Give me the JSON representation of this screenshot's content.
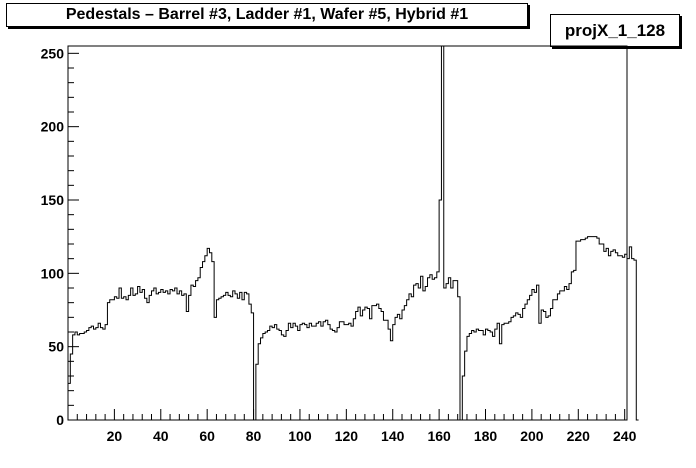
{
  "title": "Pedestals – Barrel #3, Ladder #1, Wafer #5, Hybrid #1",
  "stats_name": "projX_1_128",
  "chart_data": {
    "type": "step-histogram",
    "title": "Pedestals – Barrel #3, Ladder #1, Wafer #5, Hybrid #1",
    "xlabel": "",
    "ylabel": "",
    "xlim": [
      0,
      241
    ],
    "ylim": [
      0,
      255
    ],
    "xticks": [
      20,
      40,
      60,
      80,
      100,
      120,
      140,
      160,
      180,
      200,
      220,
      240
    ],
    "yticks": [
      0,
      50,
      100,
      150,
      200,
      250
    ],
    "grid": false,
    "legend": "none",
    "x_start": 0,
    "bin_width": 1,
    "values": [
      25,
      45,
      58,
      60,
      58,
      59,
      59,
      60,
      61,
      63,
      64,
      62,
      63,
      66,
      63,
      62,
      65,
      80,
      82,
      82,
      84,
      83,
      90,
      83,
      84,
      82,
      85,
      90,
      85,
      86,
      91,
      87,
      89,
      83,
      80,
      85,
      88,
      90,
      86,
      87,
      89,
      87,
      88,
      86,
      89,
      88,
      90,
      86,
      88,
      85,
      86,
      74,
      85,
      92,
      91,
      95,
      97,
      104,
      108,
      112,
      117,
      114,
      108,
      70,
      82,
      83,
      84,
      85,
      87,
      85,
      84,
      88,
      86,
      83,
      87,
      82,
      87,
      86,
      79,
      73,
      0,
      38,
      52,
      56,
      59,
      60,
      61,
      64,
      63,
      65,
      62,
      61,
      58,
      57,
      61,
      66,
      63,
      66,
      64,
      61,
      65,
      66,
      65,
      63,
      66,
      64,
      64,
      66,
      67,
      64,
      67,
      68,
      65,
      62,
      61,
      60,
      63,
      67,
      67,
      65,
      65,
      66,
      64,
      69,
      74,
      77,
      71,
      75,
      77,
      76,
      69,
      78,
      78,
      79,
      76,
      74,
      68,
      68,
      62,
      54,
      65,
      70,
      72,
      69,
      75,
      78,
      82,
      86,
      84,
      92,
      93,
      90,
      98,
      88,
      91,
      97,
      99,
      96,
      97,
      101,
      150,
      255,
      90,
      93,
      97,
      90,
      95,
      95,
      84,
      0,
      30,
      47,
      57,
      59,
      61,
      60,
      62,
      61,
      61,
      58,
      62,
      61,
      60,
      57,
      62,
      66,
      52,
      65,
      66,
      66,
      67,
      70,
      71,
      73,
      72,
      70,
      76,
      79,
      82,
      85,
      89,
      87,
      92,
      66,
      75,
      74,
      70,
      71,
      76,
      82,
      82,
      86,
      88,
      88,
      91,
      89,
      93,
      101,
      102,
      122,
      122,
      123,
      123,
      124,
      125,
      125,
      125,
      125,
      124,
      120,
      120,
      115,
      117,
      112,
      115,
      116,
      114,
      112,
      112,
      111,
      113,
      110,
      118,
      110,
      109,
      0
    ]
  }
}
